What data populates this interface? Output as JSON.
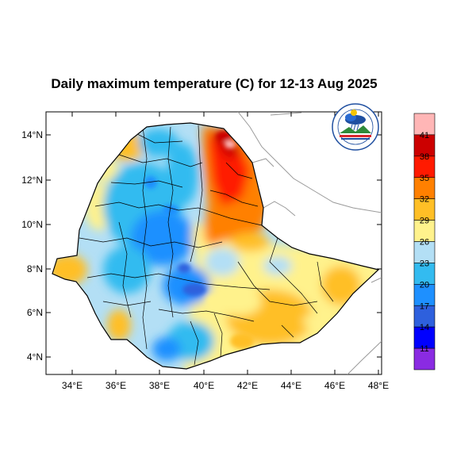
{
  "title": "Daily maximum temperature (C) for 12-13 Aug 2025",
  "logo": {
    "name": "ethiopian-meteorology-institute-logo",
    "color_primary": "#1f4fa0",
    "color_accent": "#d8262e"
  },
  "axes": {
    "x_ticks": [
      "34°E",
      "36°E",
      "38°E",
      "40°E",
      "42°E",
      "44°E",
      "46°E",
      "48°E"
    ],
    "y_ticks": [
      "14°N",
      "12°N",
      "10°N",
      "8°N",
      "6°N",
      "4°N"
    ]
  },
  "colorbar": {
    "labels": [
      "41",
      "38",
      "35",
      "32",
      "29",
      "26",
      "23",
      "20",
      "17",
      "14",
      "11"
    ],
    "colors": [
      "#ffb6b6",
      "#cc0000",
      "#ff1a00",
      "#ff8000",
      "#ffbf26",
      "#fff28c",
      "#b3dff5",
      "#33bbf0",
      "#1e90ff",
      "#2e60dd",
      "#0000ff",
      "#8a2be2"
    ]
  },
  "chart_data": {
    "type": "heatmap",
    "title": "Daily maximum temperature (C) for 12-13 Aug 2025",
    "xlabel": "",
    "ylabel": "",
    "xlim": [
      32.8,
      48.2
    ],
    "ylim": [
      3.2,
      15.0
    ],
    "grid": false,
    "legend_placement": "right",
    "units": "C",
    "levels": [
      11,
      14,
      17,
      20,
      23,
      26,
      29,
      32,
      35,
      38,
      41
    ]
  }
}
